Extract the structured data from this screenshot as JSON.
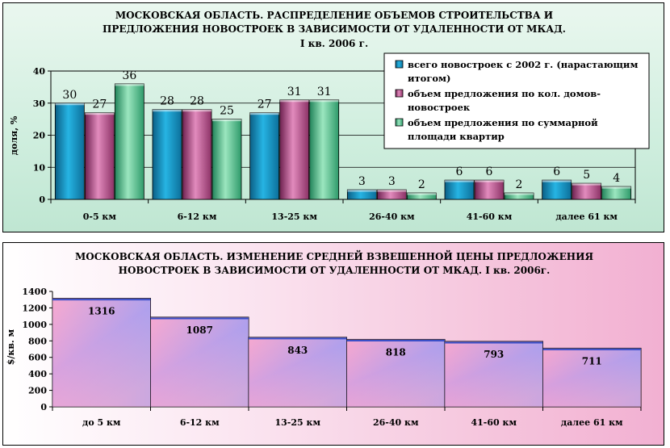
{
  "chart_data": [
    {
      "type": "bar",
      "title": "МОСКОВСКАЯ ОБЛАСТЬ. РАСПРЕДЕЛЕНИЕ ОБЪЕМОВ СТРОИТЕЛЬСТВА И ПРЕДЛОЖЕНИЯ НОВОСТРОЕК В ЗАВИСИМОСТИ ОТ УДАЛЕННОСТИ ОТ МКАД.",
      "title_lines": [
        "МОСКОВСКАЯ ОБЛАСТЬ. РАСПРЕДЕЛЕНИЕ ОБЪЕМОВ СТРОИТЕЛЬСТВА И",
        "ПРЕДЛОЖЕНИЯ НОВОСТРОЕК В ЗАВИСИМОСТИ ОТ УДАЛЕННОСТИ ОТ МКАД."
      ],
      "subtitle": "I кв. 2006 г.",
      "ylabel": "доля, %",
      "xlabel": "",
      "ylim": [
        0,
        40
      ],
      "yticks": [
        0,
        10,
        20,
        30,
        40
      ],
      "grid": true,
      "legend_position": "top-right",
      "categories": [
        "0-5 км",
        "6-12 км",
        "13-25 км",
        "26-40 км",
        "41-60 км",
        "далее 61 км"
      ],
      "series": [
        {
          "name": "всего новостроек с 2002 г. (нарастающим итогом)",
          "legend_lines": [
            "всего новостроек с 2002 г. (нарастающим",
            "итогом)"
          ],
          "color": "#1aa7d6",
          "values": [
            30,
            28,
            27,
            3,
            6,
            6
          ]
        },
        {
          "name": "объем предложения по кол. домов-новостроек",
          "legend_lines": [
            "объем предложения по кол. домов-",
            "новостроек"
          ],
          "color": "#c85a9a",
          "values": [
            27,
            28,
            31,
            3,
            6,
            5
          ]
        },
        {
          "name": "объем предложения по суммарной площади квартир",
          "legend_lines": [
            "объем предложения по суммарной",
            "площади квартир"
          ],
          "color": "#52c488",
          "values": [
            36,
            25,
            31,
            2,
            2,
            4
          ]
        }
      ]
    },
    {
      "type": "bar",
      "title": "МОСКОВСКАЯ ОБЛАСТЬ. ИЗМЕНЕНИЕ СРЕДНЕЙ ВЗВЕШЕННОЙ ЦЕНЫ ПРЕДЛОЖЕНИЯ НОВОСТРОЕК В ЗАВИСИМОСТИ ОТ УДАЛЕННОСТИ ОТ МКАД. I кв. 2006г.",
      "title_lines": [
        "МОСКОВСКАЯ ОБЛАСТЬ. ИЗМЕНЕНИЕ СРЕДНЕЙ ВЗВЕШЕННОЙ ЦЕНЫ ПРЕДЛОЖЕНИЯ",
        "НОВОСТРОЕК В ЗАВИСИМОСТИ ОТ УДАЛЕННОСТИ ОТ МКАД. I кв. 2006г."
      ],
      "ylabel": "$/кв. м",
      "xlabel": "",
      "ylim": [
        0,
        1400
      ],
      "yticks": [
        0,
        200,
        400,
        600,
        800,
        1000,
        1200,
        1400
      ],
      "grid": false,
      "categories": [
        "до 5 км",
        "6-12 км",
        "13-25 км",
        "26-40 км",
        "41-60 км",
        "далее 61 км"
      ],
      "values": [
        1316,
        1087,
        843,
        818,
        793,
        711
      ],
      "colors": {
        "top": "#8ea4f2",
        "bottom": "#f7a6cf"
      }
    }
  ]
}
